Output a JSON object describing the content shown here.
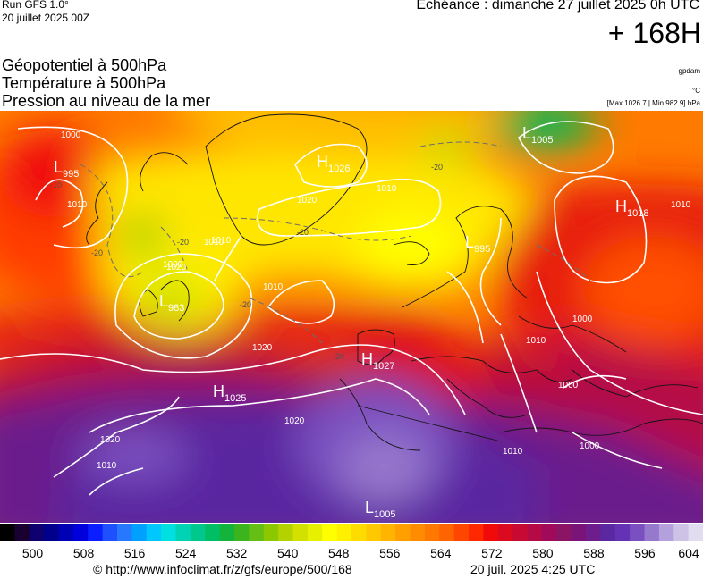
{
  "header": {
    "model": "Run GFS 1.0°",
    "run_time": "20 juillet 2025 00Z",
    "valid_time": "Echéance : dimanche 27 juillet 2025 0h UTC",
    "lead": "+ 168H"
  },
  "fields": [
    "Géopotentiel à 500hPa",
    "Température à 500hPa",
    "Pression au niveau de la mer"
  ],
  "units": {
    "geopotential": "gpdam",
    "temperature": "°C",
    "pressure_extremes": "[Max 1026.7 | Min 982.9] hPa"
  },
  "pressure_centers": [
    {
      "type": "H",
      "value": "1026"
    },
    {
      "type": "L",
      "value": "1005"
    },
    {
      "type": "L",
      "value": "995"
    },
    {
      "type": "H",
      "value": "1018"
    },
    {
      "type": "L",
      "value": "995"
    },
    {
      "type": "L",
      "value": "983"
    },
    {
      "type": "H",
      "value": "1027"
    },
    {
      "type": "H",
      "value": "1025"
    },
    {
      "type": "L",
      "value": "1005"
    }
  ],
  "isobar_labels": [
    "1000",
    "1010",
    "1020",
    "1010",
    "1000",
    "1010",
    "1020",
    "1010",
    "1010",
    "1020",
    "1020",
    "1020",
    "1010",
    "1000",
    "1000",
    "1010",
    "1010",
    "1000",
    "1010"
  ],
  "isotherm_labels": [
    "-20",
    "-20",
    "-20",
    "-20",
    "-20",
    "-20",
    "-10"
  ],
  "color_scale": {
    "unit": "gpdam",
    "min": 496,
    "max": 604,
    "tick_labels": [
      "500",
      "508",
      "516",
      "524",
      "532",
      "540",
      "548",
      "556",
      "564",
      "572",
      "580",
      "588",
      "596",
      "604"
    ],
    "colors": [
      "#000000",
      "#1a0030",
      "#0f0070",
      "#00008c",
      "#0000b4",
      "#0000dc",
      "#0a1eff",
      "#1e50ff",
      "#2878ff",
      "#00a0ff",
      "#00c8ff",
      "#00e0e0",
      "#00d2b4",
      "#00c88c",
      "#00be64",
      "#14b43c",
      "#3cb41e",
      "#64be14",
      "#8cc800",
      "#b4d200",
      "#d2e100",
      "#e6f000",
      "#ffff00",
      "#fff000",
      "#ffdc00",
      "#ffc800",
      "#ffb400",
      "#ffa000",
      "#ff8c00",
      "#ff7800",
      "#ff6400",
      "#ff4600",
      "#ff2800",
      "#f00a0a",
      "#dc0a1e",
      "#c80a32",
      "#b40a46",
      "#a00a5a",
      "#8c1464",
      "#7a1478",
      "#6e1e8c",
      "#5a28a0",
      "#6432b4",
      "#7a50c0",
      "#9678cc",
      "#b4a0dc",
      "#cdc3e6",
      "#e1dcf0"
    ]
  },
  "footer": {
    "url": "© http://www.infoclimat.fr/z/gfs/europe/500/168",
    "generated": "20 juil. 2025  4:25 UTC"
  }
}
